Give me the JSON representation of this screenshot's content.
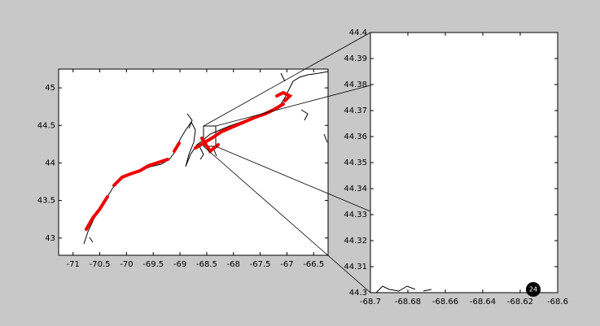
{
  "chart_data": [
    {
      "type": "map",
      "xlim": [
        -71.27,
        -66.23
      ],
      "ylim": [
        42.77,
        45.25
      ],
      "xticks": [
        -71,
        -70.5,
        -70,
        -69.5,
        -69,
        -68.5,
        -68,
        -67.5,
        -67,
        -66.5
      ],
      "yticks": [
        43,
        43.5,
        44,
        44.5,
        45
      ]
    },
    {
      "type": "map",
      "xlim": [
        -68.7,
        -68.6
      ],
      "ylim": [
        44.3,
        44.4
      ],
      "xticks": [
        -68.7,
        -68.68,
        -68.66,
        -68.64,
        -68.62,
        -68.6
      ],
      "yticks": [
        44.3,
        44.31,
        44.32,
        44.33,
        44.34,
        44.35,
        44.36,
        44.37,
        44.38,
        44.39,
        44.4
      ],
      "annotation": "24"
    }
  ]
}
